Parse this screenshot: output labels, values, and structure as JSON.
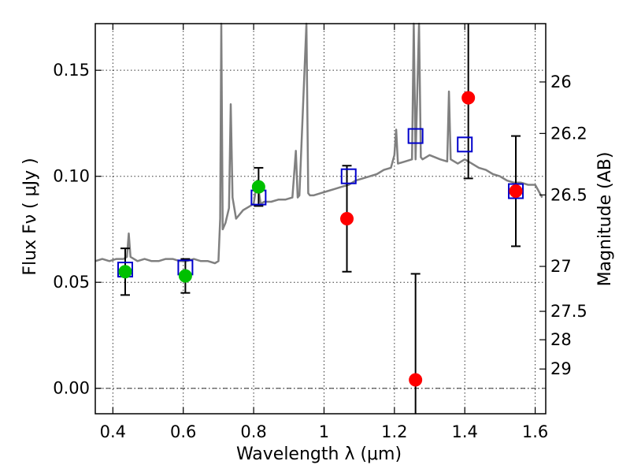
{
  "chart_data": {
    "type": "scatter",
    "xlabel": "Wavelength  λ (μm)",
    "ylabel": "Flux  Fν  ( μJy )",
    "ylabel_right": "Magnitude (AB)",
    "xlim": [
      0.35,
      1.63
    ],
    "ylim": [
      -0.012,
      0.172
    ],
    "x_ticks": [
      0.4,
      0.6,
      0.8,
      1.0,
      1.2,
      1.4,
      1.6
    ],
    "x_tick_labels": [
      "0.4",
      "0.6",
      "0.8",
      "1",
      "1.2",
      "1.4",
      "1.6"
    ],
    "y_ticks": [
      0.0,
      0.05,
      0.1,
      0.15
    ],
    "y_tick_labels": [
      "0.00",
      "0.05",
      "0.10",
      "0.15"
    ],
    "mag_ticks": [
      {
        "label": "26",
        "flux": 0.1445
      },
      {
        "label": "26.2",
        "flux": 0.1202
      },
      {
        "label": "26.5",
        "flux": 0.0912
      },
      {
        "label": "27",
        "flux": 0.0575
      },
      {
        "label": "27.5",
        "flux": 0.0363
      },
      {
        "label": "28",
        "flux": 0.0229
      },
      {
        "label": "29",
        "flux": 0.0091
      }
    ],
    "grid": true,
    "series": [
      {
        "marker": "circle",
        "color": "#00c000",
        "points": [
          {
            "x": 0.435,
            "y": 0.055,
            "yerr": 0.011
          },
          {
            "x": 0.606,
            "y": 0.053,
            "yerr": 0.008
          },
          {
            "x": 0.814,
            "y": 0.095,
            "yerr": 0.009
          }
        ]
      },
      {
        "marker": "circle",
        "color": "#ff0000",
        "points": [
          {
            "x": 1.065,
            "y": 0.08,
            "yerr": 0.025
          },
          {
            "x": 1.26,
            "y": 0.004,
            "yerr": 0.05
          },
          {
            "x": 1.41,
            "y": 0.137,
            "yerr": 0.038
          },
          {
            "x": 1.545,
            "y": 0.093,
            "yerr": 0.026
          }
        ]
      },
      {
        "marker": "open-square",
        "color": "#0000cc",
        "points": [
          {
            "x": 0.435,
            "y": 0.056
          },
          {
            "x": 0.606,
            "y": 0.057
          },
          {
            "x": 0.814,
            "y": 0.09
          },
          {
            "x": 1.07,
            "y": 0.1
          },
          {
            "x": 1.26,
            "y": 0.119
          },
          {
            "x": 1.4,
            "y": 0.115
          },
          {
            "x": 1.545,
            "y": 0.093
          }
        ]
      },
      {
        "type": "line",
        "color": "#808080",
        "x": [
          0.35,
          0.37,
          0.39,
          0.41,
          0.43,
          0.44,
          0.445,
          0.45,
          0.47,
          0.49,
          0.51,
          0.53,
          0.55,
          0.57,
          0.59,
          0.61,
          0.63,
          0.65,
          0.67,
          0.69,
          0.7,
          0.705,
          0.708,
          0.712,
          0.72,
          0.73,
          0.735,
          0.74,
          0.75,
          0.77,
          0.79,
          0.8,
          0.81,
          0.82,
          0.83,
          0.85,
          0.87,
          0.89,
          0.91,
          0.92,
          0.925,
          0.93,
          0.95,
          0.955,
          0.96,
          0.97,
          0.99,
          1.01,
          1.03,
          1.05,
          1.07,
          1.09,
          1.11,
          1.13,
          1.15,
          1.17,
          1.19,
          1.2,
          1.205,
          1.21,
          1.23,
          1.25,
          1.255,
          1.26,
          1.27,
          1.275,
          1.28,
          1.3,
          1.33,
          1.35,
          1.355,
          1.36,
          1.38,
          1.4,
          1.42,
          1.44,
          1.46,
          1.48,
          1.5,
          1.52,
          1.54,
          1.56,
          1.58,
          1.6,
          1.62
        ],
        "y": [
          0.06,
          0.061,
          0.06,
          0.061,
          0.061,
          0.062,
          0.073,
          0.062,
          0.06,
          0.061,
          0.06,
          0.06,
          0.061,
          0.061,
          0.06,
          0.06,
          0.061,
          0.06,
          0.06,
          0.059,
          0.06,
          0.08,
          0.172,
          0.075,
          0.078,
          0.085,
          0.134,
          0.09,
          0.08,
          0.084,
          0.086,
          0.087,
          0.098,
          0.087,
          0.088,
          0.088,
          0.089,
          0.089,
          0.09,
          0.112,
          0.09,
          0.091,
          0.172,
          0.092,
          0.091,
          0.091,
          0.092,
          0.093,
          0.094,
          0.095,
          0.096,
          0.098,
          0.099,
          0.1,
          0.101,
          0.103,
          0.104,
          0.11,
          0.122,
          0.106,
          0.107,
          0.108,
          0.172,
          0.108,
          0.172,
          0.109,
          0.108,
          0.11,
          0.108,
          0.107,
          0.14,
          0.108,
          0.106,
          0.108,
          0.106,
          0.104,
          0.103,
          0.101,
          0.1,
          0.098,
          0.097,
          0.097,
          0.096,
          0.096,
          0.09
        ]
      }
    ]
  }
}
